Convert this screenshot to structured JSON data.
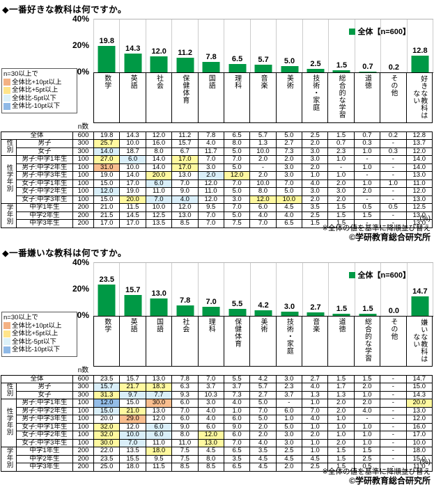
{
  "meta": {
    "sort_note": "※全体の値を基準に降順並び替え",
    "copyright": "©学研教育総合研究所",
    "threshold_legend": {
      "title": "n=30以上で",
      "items": [
        {
          "label": "全体比+10pt以上",
          "color": "#F4B183",
          "mark": "p10"
        },
        {
          "label": "全体比+5pt以上",
          "color": "#FFE48A",
          "mark": "p5"
        },
        {
          "label": "全体比-5pt以下",
          "color": "#DCF1F9",
          "mark": "m5"
        },
        {
          "label": "全体比-10pt以下",
          "color": "#8FB9E6",
          "mark": "m10"
        }
      ]
    },
    "colors": {
      "bar": "#009945",
      "highlight_p10": "#F9BE8F",
      "highlight_p5": "#FFF9A0",
      "highlight_m5": "#DAEFF9",
      "highlight_m10": "#94BEE8"
    }
  },
  "chart_data": [
    {
      "type": "bar",
      "title": "◆一番好きな教科は何ですか。",
      "legend": "全体【n=600】",
      "ylim": [
        0,
        40
      ],
      "yticks": [
        "40%",
        "20%",
        "0%"
      ],
      "categories": [
        "数学",
        "英語",
        "社会",
        "保健体育",
        "国語",
        "理科",
        "音楽",
        "美術",
        "技術・家庭",
        "総合的な学習",
        "道徳",
        "その他",
        "好きな教科はない"
      ],
      "values": [
        19.8,
        14.3,
        12.0,
        11.2,
        7.8,
        6.5,
        5.7,
        5.0,
        2.5,
        1.5,
        0.7,
        0.2,
        12.8
      ],
      "bar_labels": [
        "19.8",
        "14.3",
        "12.0",
        "11.2",
        "7.8",
        "6.5",
        "5.7",
        "5.0",
        "2.5",
        "1.5",
        "0.7",
        "0.2",
        "12.8"
      ],
      "table": {
        "n_header": "n数",
        "unit": "(%)",
        "rows": [
          {
            "group": "",
            "label": "全体",
            "n": "600",
            "values": [
              "19.8",
              "14.3",
              "12.0",
              "11.2",
              "7.8",
              "6.5",
              "5.7",
              "5.0",
              "2.5",
              "1.5",
              "0.7",
              "0.2",
              "12.8"
            ],
            "marks": [
              "",
              "",
              "",
              "",
              "",
              "",
              "",
              "",
              "",
              "",
              "",
              "",
              ""
            ]
          },
          {
            "group": "性別",
            "label": "男子",
            "n": "300",
            "values": [
              "25.7",
              "10.0",
              "16.0",
              "15.7",
              "4.0",
              "8.0",
              "1.3",
              "2.7",
              "2.0",
              "0.7",
              "0.3",
              "-",
              "13.7"
            ],
            "marks": [
              "p5",
              "",
              "",
              "",
              "",
              "",
              "",
              "",
              "",
              "",
              "",
              "",
              ""
            ]
          },
          {
            "group": "性別",
            "label": "女子",
            "n": "300",
            "values": [
              "14.0",
              "18.7",
              "8.0",
              "6.7",
              "11.7",
              "5.0",
              "10.0",
              "7.3",
              "3.0",
              "2.3",
              "1.0",
              "0.3",
              "12.0"
            ],
            "marks": [
              "m5",
              "",
              "",
              "",
              "",
              "",
              "",
              "",
              "",
              "",
              "",
              "",
              ""
            ]
          },
          {
            "group": "性学年別",
            "label": "男子:中学1年生",
            "n": "100",
            "values": [
              "27.0",
              "6.0",
              "14.0",
              "17.0",
              "7.0",
              "7.0",
              "2.0",
              "2.0",
              "3.0",
              "1.0",
              "-",
              "-",
              "14.0"
            ],
            "marks": [
              "p5",
              "m5",
              "",
              "p5",
              "",
              "",
              "",
              "",
              "",
              "",
              "",
              "",
              ""
            ]
          },
          {
            "group": "性学年別",
            "label": "男子:中学2年生",
            "n": "100",
            "values": [
              "31.0",
              "10.0",
              "14.0",
              "17.0",
              "3.0",
              "5.0",
              "-",
              "3.0",
              "2.0",
              "-",
              "1.0",
              "-",
              "14.0"
            ],
            "marks": [
              "p10",
              "",
              "",
              "p5",
              "",
              "",
              "",
              "",
              "",
              "",
              "",
              "",
              ""
            ]
          },
          {
            "group": "性学年別",
            "label": "男子:中学3年生",
            "n": "100",
            "values": [
              "19.0",
              "14.0",
              "20.0",
              "13.0",
              "2.0",
              "12.0",
              "2.0",
              "3.0",
              "1.0",
              "1.0",
              "-",
              "-",
              "13.0"
            ],
            "marks": [
              "",
              "",
              "p5",
              "",
              "m5",
              "p5",
              "",
              "",
              "",
              "",
              "",
              "",
              ""
            ]
          },
          {
            "group": "性学年別",
            "label": "女子:中学1年生",
            "n": "100",
            "values": [
              "15.0",
              "17.0",
              "6.0",
              "7.0",
              "12.0",
              "7.0",
              "10.0",
              "7.0",
              "4.0",
              "2.0",
              "1.0",
              "1.0",
              "11.0"
            ],
            "marks": [
              "",
              "",
              "m5",
              "",
              "",
              "",
              "",
              "",
              "",
              "",
              "",
              "",
              ""
            ]
          },
          {
            "group": "性学年別",
            "label": "女子:中学2年生",
            "n": "100",
            "values": [
              "12.0",
              "19.0",
              "11.0",
              "9.0",
              "11.0",
              "5.0",
              "8.0",
              "5.0",
              "3.0",
              "3.0",
              "2.0",
              "-",
              "12.0"
            ],
            "marks": [
              "m5",
              "",
              "",
              "",
              "",
              "",
              "",
              "",
              "",
              "",
              "",
              "",
              ""
            ]
          },
          {
            "group": "性学年別",
            "label": "女子:中学3年生",
            "n": "100",
            "values": [
              "15.0",
              "20.0",
              "7.0",
              "4.0",
              "12.0",
              "3.0",
              "12.0",
              "10.0",
              "2.0",
              "2.0",
              "-",
              "-",
              "13.0"
            ],
            "marks": [
              "",
              "p5",
              "m5",
              "m5",
              "",
              "",
              "p5",
              "p5",
              "",
              "",
              "",
              "",
              ""
            ]
          },
          {
            "group": "学年別",
            "label": "中学1年生",
            "n": "200",
            "values": [
              "21.0",
              "11.5",
              "10.0",
              "12.0",
              "9.5",
              "7.0",
              "6.0",
              "4.5",
              "3.5",
              "1.5",
              "0.5",
              "0.5",
              "12.5"
            ],
            "marks": [
              "",
              "",
              "",
              "",
              "",
              "",
              "",
              "",
              "",
              "",
              "",
              "",
              ""
            ]
          },
          {
            "group": "学年別",
            "label": "中学2年生",
            "n": "200",
            "values": [
              "21.5",
              "14.5",
              "12.5",
              "13.0",
              "7.0",
              "5.0",
              "4.0",
              "4.0",
              "2.5",
              "1.5",
              "1.5",
              "-",
              "13.0"
            ],
            "marks": [
              "",
              "",
              "",
              "",
              "",
              "",
              "",
              "",
              "",
              "",
              "",
              "",
              ""
            ]
          },
          {
            "group": "学年別",
            "label": "中学3年生",
            "n": "200",
            "values": [
              "17.0",
              "17.0",
              "13.5",
              "8.5",
              "7.0",
              "7.5",
              "7.0",
              "6.5",
              "1.5",
              "1.5",
              "-",
              "-",
              "13.0"
            ],
            "marks": [
              "",
              "",
              "",
              "",
              "",
              "",
              "",
              "",
              "",
              "",
              "",
              "",
              ""
            ]
          }
        ]
      }
    },
    {
      "type": "bar",
      "title": "◆一番嫌いな教科は何ですか。",
      "legend": "全体【n=600】",
      "ylim": [
        0,
        40
      ],
      "yticks": [
        "40%",
        "20%",
        "0%"
      ],
      "categories": [
        "数学",
        "英語",
        "国語",
        "社会",
        "理科",
        "保健体育",
        "美術",
        "技術・家庭",
        "音楽",
        "道徳",
        "総合的な学習",
        "その他",
        "嫌いな教科はない"
      ],
      "values": [
        23.5,
        15.7,
        13.0,
        7.8,
        7.0,
        5.5,
        4.2,
        3.0,
        2.7,
        1.5,
        1.5,
        0.0,
        14.7
      ],
      "bar_labels": [
        "23.5",
        "15.7",
        "13.0",
        "7.8",
        "7.0",
        "5.5",
        "4.2",
        "3.0",
        "2.7",
        "1.5",
        "1.5",
        "0.0",
        "14.7"
      ],
      "table": {
        "n_header": "n数",
        "unit": "(%)",
        "rows": [
          {
            "group": "",
            "label": "全体",
            "n": "600",
            "values": [
              "23.5",
              "15.7",
              "13.0",
              "7.8",
              "7.0",
              "5.5",
              "4.2",
              "3.0",
              "2.7",
              "1.5",
              "1.5",
              "-",
              "14.7"
            ],
            "marks": [
              "",
              "",
              "",
              "",
              "",
              "",
              "",
              "",
              "",
              "",
              "",
              "",
              ""
            ]
          },
          {
            "group": "性別",
            "label": "男子",
            "n": "300",
            "values": [
              "15.7",
              "21.7",
              "18.3",
              "6.3",
              "3.7",
              "3.7",
              "5.7",
              "2.3",
              "4.0",
              "1.7",
              "2.0",
              "-",
              "15.0"
            ],
            "marks": [
              "m5",
              "p5",
              "p5",
              "",
              "",
              "",
              "",
              "",
              "",
              "",
              "",
              "",
              ""
            ]
          },
          {
            "group": "性別",
            "label": "女子",
            "n": "300",
            "values": [
              "31.3",
              "9.7",
              "7.7",
              "9.3",
              "10.3",
              "7.3",
              "2.7",
              "3.7",
              "1.3",
              "1.3",
              "1.0",
              "-",
              "14.3"
            ],
            "marks": [
              "p5",
              "m5",
              "m5",
              "",
              "",
              "",
              "",
              "",
              "",
              "",
              "",
              "",
              ""
            ]
          },
          {
            "group": "性学年別",
            "label": "男子:中学1年生",
            "n": "100",
            "values": [
              "12.0",
              "15.0",
              "30.0",
              "6.0",
              "3.0",
              "4.0",
              "5.0",
              "-",
              "1.0",
              "2.0",
              "2.0",
              "-",
              "20.0"
            ],
            "marks": [
              "m10",
              "",
              "p10",
              "",
              "",
              "",
              "",
              "",
              "",
              "",
              "",
              "",
              "p5"
            ]
          },
          {
            "group": "性学年別",
            "label": "男子:中学2年生",
            "n": "100",
            "values": [
              "15.0",
              "21.0",
              "13.0",
              "7.0",
              "4.0",
              "1.0",
              "7.0",
              "6.0",
              "7.0",
              "2.0",
              "4.0",
              "-",
              "13.0"
            ],
            "marks": [
              "m5",
              "p5",
              "",
              "",
              "",
              "",
              "",
              "",
              "",
              "",
              "",
              "",
              ""
            ]
          },
          {
            "group": "性学年別",
            "label": "男子:中学3年生",
            "n": "100",
            "values": [
              "20.0",
              "29.0",
              "12.0",
              "6.0",
              "4.0",
              "6.0",
              "5.0",
              "1.0",
              "4.0",
              "1.0",
              "-",
              "-",
              "12.0"
            ],
            "marks": [
              "",
              "p10",
              "",
              "",
              "",
              "",
              "",
              "",
              "",
              "",
              "",
              "",
              ""
            ]
          },
          {
            "group": "性学年別",
            "label": "女子:中学1年生",
            "n": "100",
            "values": [
              "32.0",
              "12.0",
              "6.0",
              "9.0",
              "6.0",
              "9.0",
              "2.0",
              "5.0",
              "1.0",
              "1.0",
              "1.0",
              "-",
              "16.0"
            ],
            "marks": [
              "p5",
              "",
              "m5",
              "",
              "",
              "",
              "",
              "",
              "",
              "",
              "",
              "",
              ""
            ]
          },
          {
            "group": "性学年別",
            "label": "女子:中学2年生",
            "n": "100",
            "values": [
              "32.0",
              "10.0",
              "6.0",
              "8.0",
              "12.0",
              "6.0",
              "2.0",
              "3.0",
              "2.0",
              "1.0",
              "1.0",
              "-",
              "17.0"
            ],
            "marks": [
              "p5",
              "m5",
              "m5",
              "",
              "p5",
              "",
              "",
              "",
              "",
              "",
              "",
              "",
              ""
            ]
          },
          {
            "group": "性学年別",
            "label": "女子:中学3年生",
            "n": "100",
            "values": [
              "30.0",
              "7.0",
              "11.0",
              "11.0",
              "13.0",
              "7.0",
              "4.0",
              "3.0",
              "1.0",
              "2.0",
              "1.0",
              "-",
              "10.0"
            ],
            "marks": [
              "p5",
              "m5",
              "",
              "",
              "p5",
              "",
              "",
              "",
              "",
              "",
              "",
              "",
              ""
            ]
          },
          {
            "group": "学年別",
            "label": "中学1年生",
            "n": "200",
            "values": [
              "22.0",
              "13.5",
              "18.0",
              "7.5",
              "4.5",
              "6.5",
              "3.5",
              "2.5",
              "1.0",
              "1.5",
              "1.5",
              "-",
              "18.0"
            ],
            "marks": [
              "",
              "",
              "p5",
              "",
              "",
              "",
              "",
              "",
              "",
              "",
              "",
              "",
              ""
            ]
          },
          {
            "group": "学年別",
            "label": "中学2年生",
            "n": "200",
            "values": [
              "23.5",
              "15.5",
              "9.5",
              "7.5",
              "8.0",
              "3.5",
              "4.5",
              "4.5",
              "4.5",
              "1.5",
              "2.5",
              "-",
              "15.0"
            ],
            "marks": [
              "",
              "",
              "",
              "",
              "",
              "",
              "",
              "",
              "",
              "",
              "",
              "",
              ""
            ]
          },
          {
            "group": "学年別",
            "label": "中学3年生",
            "n": "200",
            "values": [
              "25.0",
              "18.0",
              "11.5",
              "8.5",
              "8.5",
              "6.5",
              "4.5",
              "2.0",
              "2.5",
              "1.5",
              "0.5",
              "-",
              "11.0"
            ],
            "marks": [
              "",
              "",
              "",
              "",
              "",
              "",
              "",
              "",
              "",
              "",
              "",
              "",
              ""
            ]
          }
        ]
      }
    }
  ]
}
